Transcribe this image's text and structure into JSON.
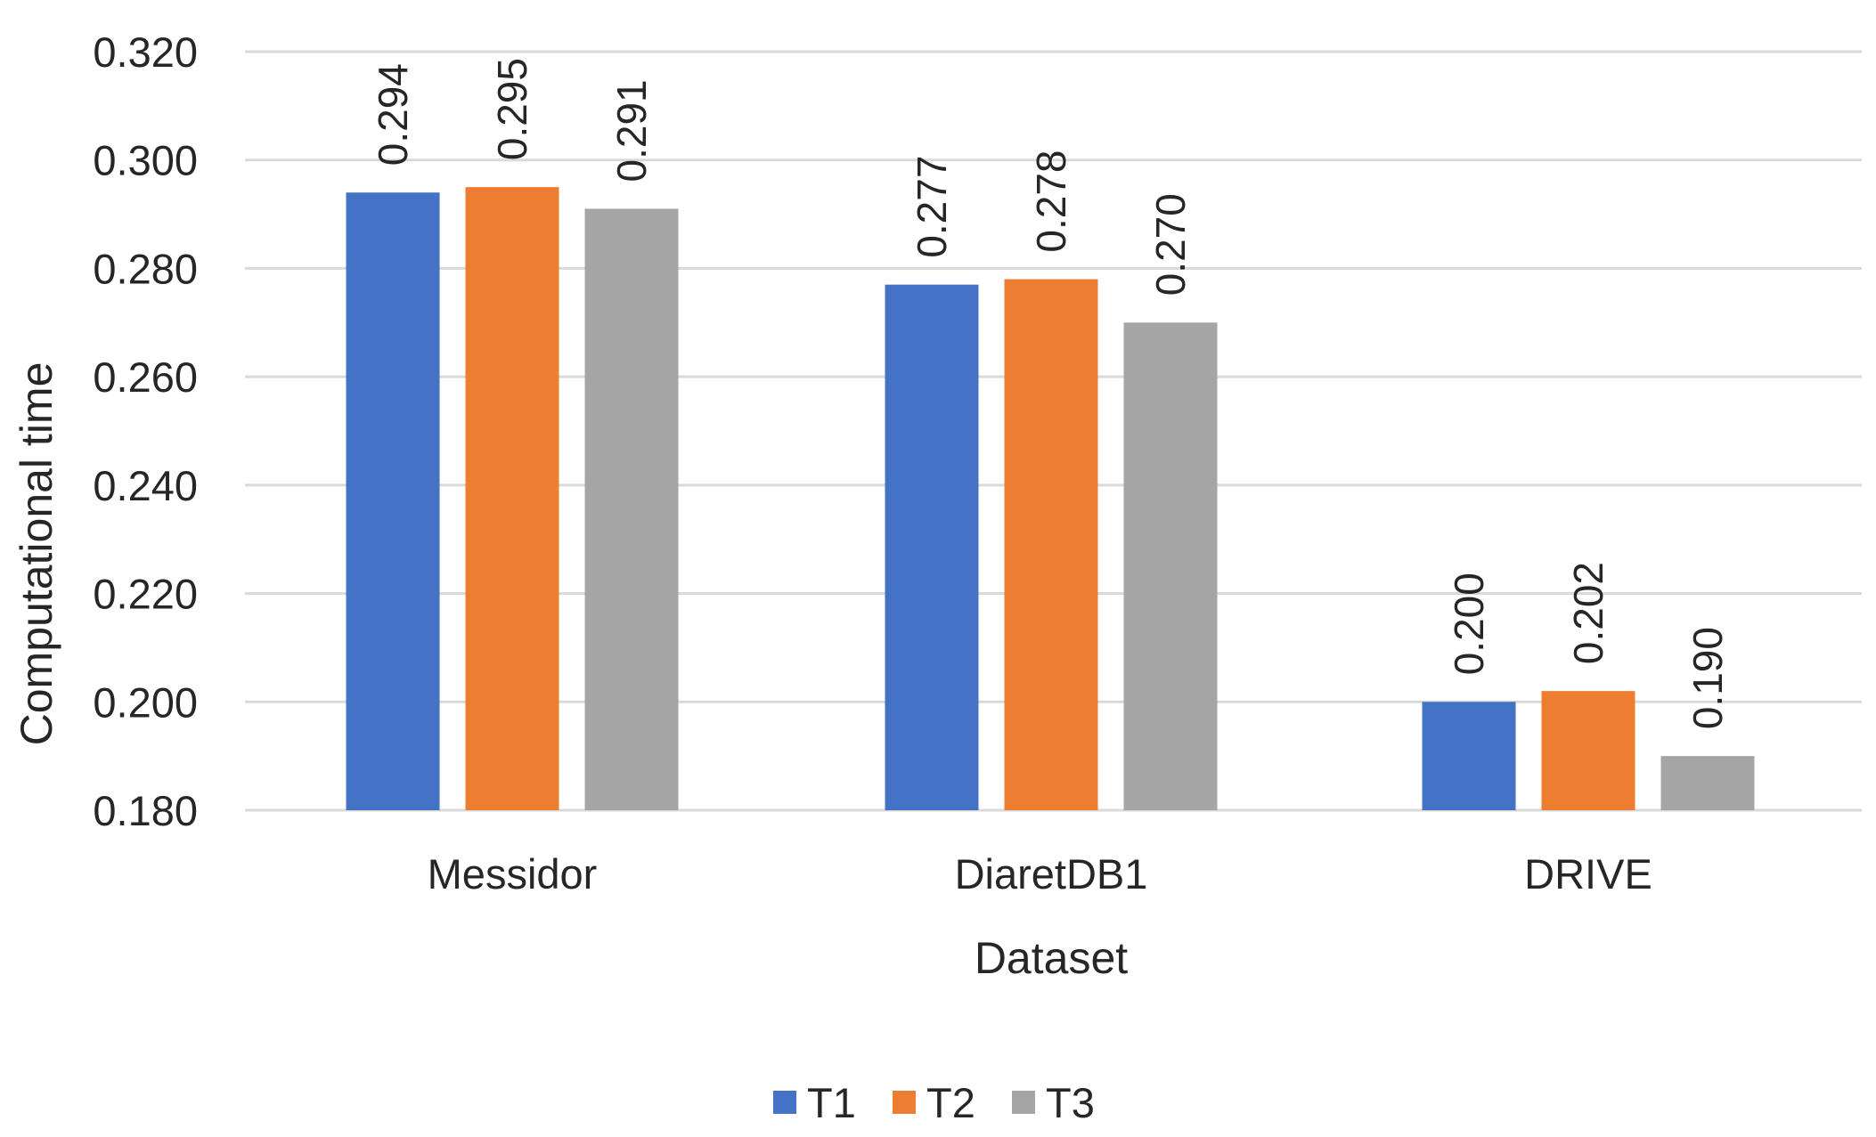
{
  "chart_data": {
    "type": "bar",
    "title": "",
    "xlabel": "Dataset",
    "ylabel": "Computational time",
    "categories": [
      "Messidor",
      "DiaretDB1",
      "DRIVE"
    ],
    "series": [
      {
        "name": "T1",
        "color": "#4472c4",
        "values": [
          0.294,
          0.277,
          0.2
        ],
        "labels": [
          "0.294",
          "0.277",
          "0.200"
        ]
      },
      {
        "name": "T2",
        "color": "#ed7d31",
        "values": [
          0.295,
          0.278,
          0.202
        ],
        "labels": [
          "0.295",
          "0.278",
          "0.202"
        ]
      },
      {
        "name": "T3",
        "color": "#a5a5a5",
        "values": [
          0.291,
          0.27,
          0.19
        ],
        "labels": [
          "0.291",
          "0.270",
          "0.190"
        ]
      }
    ],
    "ylim": [
      0.18,
      0.32
    ],
    "yticks": [
      0.18,
      0.2,
      0.22,
      0.24,
      0.26,
      0.28,
      0.3,
      0.32
    ],
    "ytick_labels": [
      "0.180",
      "0.200",
      "0.220",
      "0.240",
      "0.260",
      "0.280",
      "0.300",
      "0.320"
    ],
    "grid": true,
    "legend_position": "bottom-center"
  }
}
